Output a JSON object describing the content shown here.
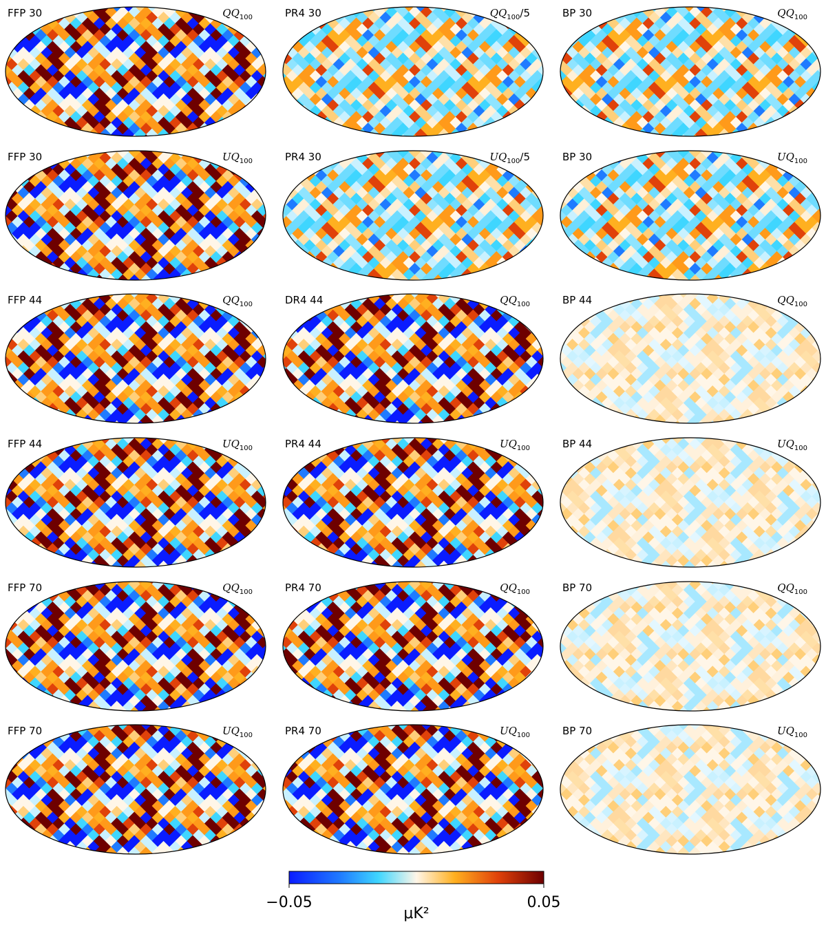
{
  "panels": [
    {
      "name": "FFP 30",
      "field": "QQ",
      "sub": "100"
    },
    {
      "name": "PR4 30",
      "field": "QQ",
      "sub": "100",
      "suffix": "/5"
    },
    {
      "name": "BP 30",
      "field": "QQ",
      "sub": "100"
    },
    {
      "name": "FFP 30",
      "field": "UQ",
      "sub": "100"
    },
    {
      "name": "PR4 30",
      "field": "UQ",
      "sub": "100",
      "suffix": "/5"
    },
    {
      "name": "BP 30",
      "field": "UQ",
      "sub": "100"
    },
    {
      "name": "FFP 44",
      "field": "QQ",
      "sub": "100"
    },
    {
      "name": "DR4 44",
      "field": "QQ",
      "sub": "100"
    },
    {
      "name": "BP 44",
      "field": "QQ",
      "sub": "100"
    },
    {
      "name": "FFP 44",
      "field": "UQ",
      "sub": "100"
    },
    {
      "name": "PR4 44",
      "field": "UQ",
      "sub": "100"
    },
    {
      "name": "BP 44",
      "field": "UQ",
      "sub": "100"
    },
    {
      "name": "FFP 70",
      "field": "QQ",
      "sub": "100"
    },
    {
      "name": "PR4 70",
      "field": "QQ",
      "sub": "100"
    },
    {
      "name": "BP 70",
      "field": "QQ",
      "sub": "100"
    },
    {
      "name": "FFP 70",
      "field": "UQ",
      "sub": "100"
    },
    {
      "name": "PR4 70",
      "field": "UQ",
      "sub": "100"
    },
    {
      "name": "BP 70",
      "field": "UQ",
      "sub": "100"
    }
  ],
  "colorbar": {
    "lim": [
      -0.05,
      0.05
    ],
    "ticks": [
      {
        "value": -0.05,
        "label": "−0.05"
      },
      0.05
    ],
    "label": "μK²"
  }
}
